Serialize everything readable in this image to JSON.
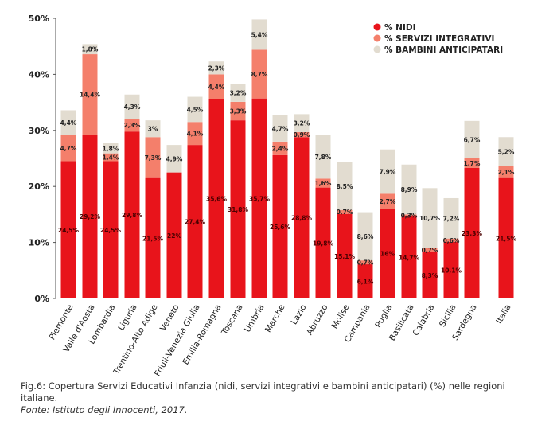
{
  "chart_data": {
    "type": "bar",
    "stacked": true,
    "ylim": [
      0,
      50
    ],
    "y_ticks": [
      "0%",
      "10%",
      "20%",
      "30%",
      "40%",
      "50%"
    ],
    "grid": false,
    "legend_position": "top-right",
    "categories": [
      "Piemonte",
      "Valle d'Aosta",
      "Lombardia",
      "Liguria",
      "Trentino-Alto Adige",
      "Veneto",
      "Friuli-Venezia Giulia",
      "Emilia-Romagna",
      "Toscana",
      "Umbria",
      "Marche",
      "Lazio",
      "Abruzzo",
      "Molise",
      "Campania",
      "Puglia",
      "Basilicata",
      "Calabria",
      "Sicilia",
      "Sardegna",
      "Italia"
    ],
    "series": [
      {
        "name": "% NIDI",
        "color": "#e8141b",
        "values": [
          24.5,
          29.2,
          24.5,
          29.8,
          21.5,
          22.5,
          27.4,
          35.6,
          31.8,
          35.7,
          25.6,
          28.8,
          19.8,
          15.1,
          6.1,
          16.0,
          14.7,
          8.3,
          10.1,
          23.3,
          21.5
        ],
        "labels": [
          "24,5%",
          "29,2%",
          "24,5%",
          "29,8%",
          "21,5%",
          "22%",
          "27,4%",
          "35,6%",
          "31,8%",
          "35,7%",
          "25,6%",
          "28,8%",
          "19,8%",
          "15,1%",
          "6,1%",
          "16%",
          "14,7%",
          "8,3%",
          "10,1%",
          "23,3%",
          "21,5%"
        ]
      },
      {
        "name": "% SERVIZI INTEGRATIVI",
        "color": "#f47f6b",
        "values": [
          4.7,
          14.4,
          1.4,
          2.3,
          7.3,
          0,
          4.1,
          4.4,
          3.3,
          8.7,
          2.4,
          0.9,
          1.6,
          0.7,
          0.7,
          2.7,
          0.3,
          0.7,
          0.6,
          1.7,
          2.1
        ],
        "labels": [
          "4,7%",
          "14,4%",
          "1,4%",
          "2,3%",
          "7,3%",
          "",
          "4,1%",
          "4,4%",
          "3,3%",
          "8,7%",
          "2,4%",
          "0,9%",
          "1,6%",
          "0,7%",
          "0,7%",
          "2,7%",
          "0,3%",
          "0,7%",
          "0,6%",
          "1,7%",
          "2,1%"
        ]
      },
      {
        "name": "% BAMBINI ANTICIPATARI",
        "color": "#e2dcd0",
        "values": [
          4.4,
          1.8,
          1.8,
          4.3,
          3.0,
          4.9,
          4.5,
          2.3,
          3.2,
          5.4,
          4.7,
          3.2,
          7.8,
          8.5,
          8.6,
          7.9,
          8.9,
          10.7,
          7.2,
          6.7,
          5.2
        ],
        "labels": [
          "4,4%",
          "1,8%",
          "1,8%",
          "4,3%",
          "3%",
          "4,9%",
          "4,5%",
          "2,3%",
          "3,2%",
          "5,4%",
          "4,7%",
          "3,2%",
          "7,8%",
          "8,5%",
          "8,6%",
          "7,9%",
          "8,9%",
          "10,7%",
          "7,2%",
          "6,7%",
          "5,2%"
        ]
      }
    ]
  },
  "caption": {
    "figure_text": "Fig.6: Copertura Servizi Educativi Infanzia (nidi, servizi integrativi e bambini anticipatari) (%) nelle regioni italiane.",
    "source_text": "Fonte: Istituto degli Innocenti, 2017."
  }
}
